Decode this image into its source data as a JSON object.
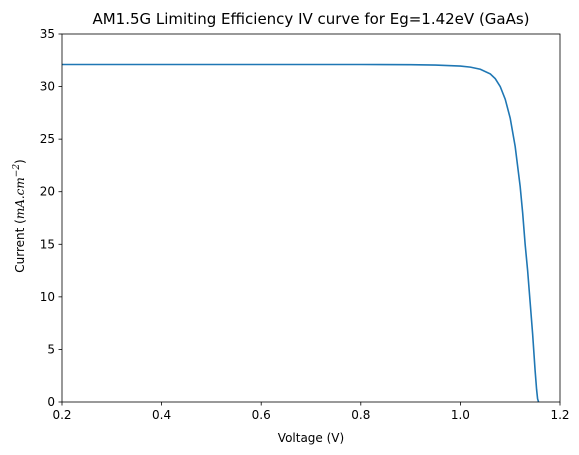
{
  "chart_data": {
    "type": "line",
    "title": "AM1.5G Limiting Efficiency IV curve for Eg=1.42eV (GaAs)",
    "xlabel": "Voltage (V)",
    "ylabel": {
      "prefix": "Current (",
      "unit": "mA.cm",
      "exponent": "−2",
      "suffix": ")"
    },
    "xlim": [
      0.2,
      1.2
    ],
    "ylim": [
      0,
      35
    ],
    "xticks": [
      "0.2",
      "0.4",
      "0.6",
      "0.8",
      "1.0",
      "1.2"
    ],
    "yticks": [
      "0",
      "5",
      "10",
      "15",
      "20",
      "25",
      "30",
      "35"
    ],
    "grid": false,
    "line_color": "#1f77b4",
    "series": [
      {
        "x": [
          0.2,
          0.4,
          0.6,
          0.8,
          0.9,
          0.95,
          1.0,
          1.02,
          1.04,
          1.06,
          1.07,
          1.08,
          1.09,
          1.1,
          1.11,
          1.12,
          1.125,
          1.13,
          1.135,
          1.14,
          1.145,
          1.15,
          1.153,
          1.155,
          1.157
        ],
        "y": [
          32.1,
          32.1,
          32.1,
          32.1,
          32.08,
          32.05,
          31.95,
          31.85,
          31.65,
          31.2,
          30.75,
          30.0,
          28.8,
          27.0,
          24.3,
          20.5,
          18.0,
          15.0,
          12.5,
          9.5,
          6.5,
          3.0,
          1.2,
          0.3,
          0.0
        ]
      }
    ]
  }
}
